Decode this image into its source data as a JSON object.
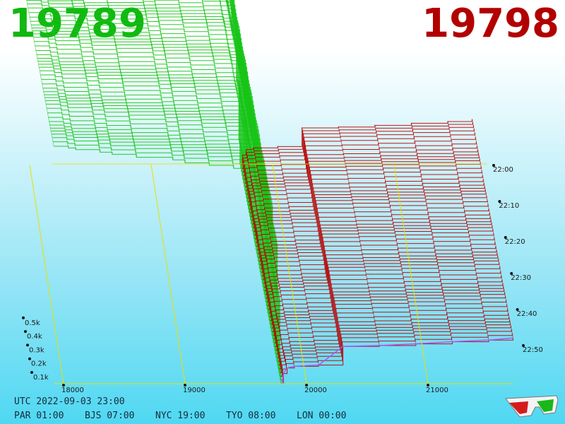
{
  "header": {
    "bid_price": "19789",
    "ask_price": "19798",
    "bid_color": "#10b810",
    "ask_color": "#b20000"
  },
  "footer": {
    "utc_label": "UTC 2022-09-03 23:00",
    "clocks": [
      {
        "label": "PAR 01:00"
      },
      {
        "label": "BJS 07:00"
      },
      {
        "label": "NYC 19:00"
      },
      {
        "label": "TYO 08:00"
      },
      {
        "label": "LON 00:00"
      }
    ]
  },
  "icons": {
    "glasses": "3d-glasses-icon"
  },
  "chart_data": {
    "type": "area",
    "title": "",
    "price_axis": {
      "ticks": [
        "18000",
        "19000",
        "20000",
        "21000"
      ],
      "range": [
        17920,
        21700
      ]
    },
    "volume_axis": {
      "ticks": [
        "0.1k",
        "0.2k",
        "0.3k",
        "0.4k",
        "0.5k"
      ],
      "range": [
        0,
        560
      ]
    },
    "time_axis": {
      "ticks": [
        "22:00",
        "22:10",
        "22:20",
        "22:30",
        "22:40",
        "22:50"
      ],
      "range": [
        "21:53",
        "22:53"
      ]
    },
    "mid_price": 19795,
    "snapshots": 60,
    "series": [
      {
        "side": "bid",
        "color": "#16c416",
        "levels": [
          {
            "price": 17920,
            "cum_volume": 560
          },
          {
            "price": 18040,
            "cum_volume": 556
          },
          {
            "price": 18100,
            "cum_volume": 552
          },
          {
            "price": 18300,
            "cum_volume": 546
          },
          {
            "price": 18400,
            "cum_volume": 541
          },
          {
            "price": 18600,
            "cum_volume": 534
          },
          {
            "price": 18900,
            "cum_volume": 528
          },
          {
            "price": 19000,
            "cum_volume": 521
          },
          {
            "price": 19200,
            "cum_volume": 515
          },
          {
            "price": 19400,
            "cum_volume": 508
          },
          {
            "price": 19550,
            "cum_volume": 497
          },
          {
            "price": 19620,
            "cum_volume": 470
          },
          {
            "price": 19680,
            "cum_volume": 420
          },
          {
            "price": 19720,
            "cum_volume": 330
          },
          {
            "price": 19760,
            "cum_volume": 200
          },
          {
            "price": 19780,
            "cum_volume": 60
          },
          {
            "price": 19789,
            "cum_volume": 0
          }
        ]
      },
      {
        "side": "ask",
        "color": "#b80000",
        "levels": [
          {
            "price": 19798,
            "cum_volume": 0
          },
          {
            "price": 19810,
            "cum_volume": 24
          },
          {
            "price": 19840,
            "cum_volume": 37
          },
          {
            "price": 19900,
            "cum_volume": 41
          },
          {
            "price": 20100,
            "cum_volume": 44
          },
          {
            "price": 20300,
            "cum_volume": 88
          },
          {
            "price": 20600,
            "cum_volume": 90
          },
          {
            "price": 20900,
            "cum_volume": 94
          },
          {
            "price": 21200,
            "cum_volume": 99
          },
          {
            "price": 21500,
            "cum_volume": 103
          },
          {
            "price": 21700,
            "cum_volume": 108
          }
        ]
      }
    ]
  }
}
